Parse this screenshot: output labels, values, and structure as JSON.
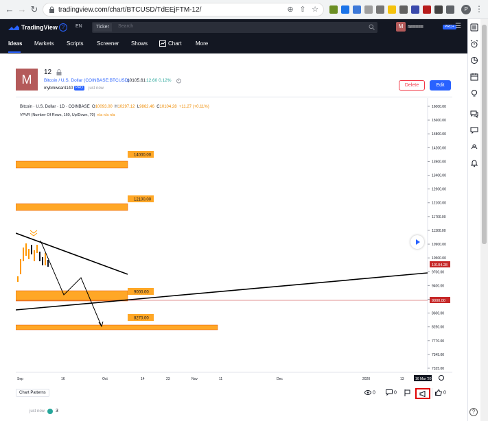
{
  "browser": {
    "url": "tradingview.com/chart/BTCUSD/TdEEjFTM-12/",
    "profile_initial": "P"
  },
  "header": {
    "logo_text": "TradingView",
    "info_glyph": "?",
    "lang": "EN",
    "ticker_label": "Ticker",
    "search_placeholder": "Search",
    "avatar_initial": "M",
    "username": "m≡≡≡≡≡",
    "pro_badge": "PRO+",
    "nav": [
      "Ideas",
      "Markets",
      "Scripts",
      "Screener",
      "Shows",
      "Chart",
      "More"
    ]
  },
  "idea": {
    "avatar_initial": "M",
    "title": "12",
    "symbol_link": "Bitcoin / U.S. Dollar (COINBASE:BTCUSD)",
    "price": "10105.61",
    "change": "12.60  0.12%",
    "author": "mybmwcar4140",
    "author_badge": "PRO",
    "posted": "just now",
    "delete_label": "Delete",
    "edit_label": "Edit"
  },
  "chart_legend": {
    "symbol": "Bitcoin · U.S. Dollar · 1D · COINBASE",
    "o_label": "O",
    "o": "10093.00",
    "h_label": "H",
    "h": "10297.12",
    "l_label": "L",
    "l": "9862.46",
    "c_label": "C",
    "c": "10104.28",
    "chg": "+11.27 (+0.11%)",
    "indicator": "VPVR (Number Of Rows, 160, Up/Down, 70)",
    "ind_vals": "n/a  n/a  n/a"
  },
  "chart_data": {
    "type": "line",
    "price_axis": [
      "16000.00",
      "15600.00",
      "14800.00",
      "14200.00",
      "13900.00",
      "13400.00",
      "12900.00",
      "12100.00",
      "11700.00",
      "11300.00",
      "10900.00",
      "10500.00",
      "9700.00",
      "9400.00",
      "8800.00",
      "8600.00",
      "8250.00",
      "7770.00",
      "7345.00",
      "7325.00"
    ],
    "time_axis": [
      "Sep",
      "16",
      "Oct",
      "14",
      "23",
      "Nov",
      "11",
      "Dec",
      "2020",
      "13"
    ],
    "time_marker": "16 Mar '20",
    "price_marker": "10104.28",
    "level_marker": "9000.00",
    "zones": [
      {
        "label": "14000.00"
      },
      {
        "label": "12100.00"
      },
      {
        "label": "9000.00"
      },
      {
        "label": "8270.00"
      }
    ],
    "colors": {
      "zone": "#ffa726",
      "zone_edge": "#e65100",
      "trendline": "#000000",
      "price_marker": "#c62828"
    }
  },
  "footer": {
    "tag": "Chart Patterns",
    "views": "0",
    "comments": "0",
    "likes": "0",
    "comment_time": "just now",
    "comment_count": "3",
    "help": "?"
  }
}
